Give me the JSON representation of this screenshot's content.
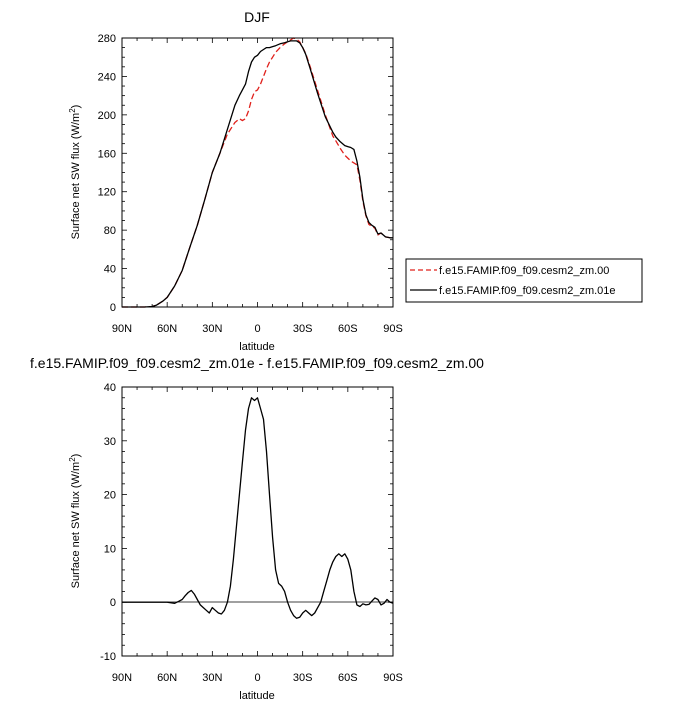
{
  "chart_data": [
    {
      "type": "line",
      "title": "DJF",
      "xlabel": "latitude",
      "ylabel": "Surface net SW flux (W/m²)",
      "ylabel_main": "Surface net SW flux (W/m",
      "ylabel_sup": "2",
      "ylabel_end": ")",
      "xlim": [
        -90,
        90
      ],
      "ylim": [
        0,
        280
      ],
      "x_ticks": [
        -90,
        -60,
        -30,
        0,
        30,
        60,
        90
      ],
      "x_tick_labels": [
        "90N",
        "60N",
        "30N",
        "0",
        "30S",
        "60S",
        "90S"
      ],
      "y_ticks": [
        0,
        40,
        80,
        120,
        160,
        200,
        240,
        280
      ],
      "y_tick_labels": [
        "0",
        "40",
        "80",
        "120",
        "160",
        "200",
        "240",
        "280"
      ],
      "legend_position": "outside-right",
      "series": [
        {
          "name": "f.e15.FAMIP.f09_f09.cesm2_zm.00",
          "color": "#e0201b",
          "dash": "dashed",
          "x": [
            -90,
            -80,
            -75,
            -70,
            -67,
            -63,
            -60,
            -55,
            -50,
            -45,
            -40,
            -35,
            -30,
            -25,
            -20,
            -15,
            -12,
            -10,
            -8,
            -6,
            -4,
            -2,
            0,
            2,
            4,
            6,
            8,
            10,
            12,
            15,
            18,
            20,
            22,
            24,
            26,
            28,
            30,
            32,
            35,
            40,
            45,
            50,
            52,
            55,
            58,
            60,
            62,
            64,
            66,
            68,
            70,
            72,
            74,
            76,
            78,
            80,
            82,
            85,
            88,
            90
          ],
          "y": [
            0,
            0,
            0,
            0.5,
            2,
            6,
            10,
            22,
            38,
            62,
            85,
            112,
            140,
            160,
            180,
            192,
            196,
            194,
            196,
            204,
            216,
            224,
            226,
            232,
            240,
            248,
            255,
            260,
            265,
            270,
            274,
            276,
            278,
            280,
            279,
            276,
            270,
            264,
            250,
            225,
            200,
            178,
            173,
            165,
            158,
            155,
            152,
            150,
            148,
            132,
            110,
            95,
            86,
            84,
            82,
            75,
            77,
            73,
            72,
            72
          ]
        },
        {
          "name": "f.e15.FAMIP.f09_f09.cesm2_zm.01e",
          "color": "#000000",
          "dash": "solid",
          "x": [
            -90,
            -80,
            -75,
            -70,
            -67,
            -63,
            -60,
            -55,
            -50,
            -45,
            -40,
            -35,
            -30,
            -25,
            -20,
            -15,
            -12,
            -10,
            -8,
            -6,
            -4,
            -2,
            0,
            2,
            4,
            6,
            8,
            10,
            12,
            15,
            18,
            20,
            22,
            24,
            26,
            28,
            30,
            32,
            35,
            40,
            45,
            50,
            52,
            55,
            58,
            60,
            62,
            64,
            66,
            68,
            70,
            72,
            74,
            76,
            78,
            80,
            82,
            85,
            88,
            90
          ],
          "y": [
            0,
            0,
            0,
            0.5,
            2,
            6,
            10,
            22,
            38,
            62,
            85,
            112,
            140,
            160,
            185,
            210,
            220,
            226,
            232,
            245,
            255,
            260,
            262,
            266,
            268,
            270,
            270,
            271,
            272,
            274,
            275,
            276,
            277,
            277,
            277,
            275,
            270,
            263,
            248,
            222,
            198,
            182,
            177,
            172,
            168,
            167,
            166,
            164,
            152,
            135,
            112,
            96,
            88,
            85,
            83,
            76,
            77,
            73,
            72,
            72
          ]
        }
      ]
    },
    {
      "type": "line",
      "title": "f.e15.FAMIP.f09_f09.cesm2_zm.01e - f.e15.FAMIP.f09_f09.cesm2_zm.00",
      "xlabel": "latitude",
      "ylabel": "Surface net SW flux (W/m²)",
      "ylabel_main": "Surface net SW flux (W/m",
      "ylabel_sup": "2",
      "ylabel_end": ")",
      "xlim": [
        -90,
        90
      ],
      "ylim": [
        -10,
        40
      ],
      "x_ticks": [
        -90,
        -60,
        -30,
        0,
        30,
        60,
        90
      ],
      "x_tick_labels": [
        "90N",
        "60N",
        "30N",
        "0",
        "30S",
        "60S",
        "90S"
      ],
      "y_ticks": [
        -10,
        0,
        10,
        20,
        30,
        40
      ],
      "y_tick_labels": [
        "-10",
        "0",
        "10",
        "20",
        "30",
        "40"
      ],
      "series": [
        {
          "color": "#000000",
          "dash": "solid",
          "x": [
            -90,
            -80,
            -70,
            -65,
            -60,
            -55,
            -52,
            -50,
            -48,
            -46,
            -44,
            -42,
            -40,
            -38,
            -36,
            -34,
            -32,
            -30,
            -28,
            -26,
            -24,
            -22,
            -20,
            -18,
            -16,
            -14,
            -12,
            -10,
            -8,
            -6,
            -4,
            -2,
            0,
            2,
            4,
            6,
            8,
            10,
            12,
            14,
            16,
            18,
            20,
            22,
            24,
            26,
            28,
            30,
            32,
            34,
            36,
            38,
            40,
            42,
            44,
            46,
            48,
            50,
            52,
            54,
            56,
            58,
            60,
            62,
            64,
            66,
            68,
            70,
            72,
            74,
            76,
            78,
            80,
            82,
            84,
            86,
            88,
            90
          ],
          "y": [
            0,
            0,
            0,
            0,
            0,
            -0.2,
            0.2,
            0.5,
            1.2,
            1.8,
            2.2,
            1.5,
            0.5,
            -0.5,
            -1,
            -1.5,
            -2,
            -1,
            -1.5,
            -2,
            -2.2,
            -1.5,
            0,
            3,
            8,
            14,
            20,
            26,
            32,
            36,
            38,
            37.5,
            38,
            36,
            34,
            28,
            20,
            12,
            6,
            3.5,
            3,
            2,
            0,
            -1.5,
            -2.5,
            -3,
            -2.8,
            -2,
            -1.5,
            -2,
            -2.5,
            -2,
            -1,
            0,
            2,
            4,
            6,
            7.5,
            8.5,
            9,
            8.5,
            9,
            8,
            6,
            2,
            -0.5,
            -0.8,
            -0.3,
            -0.5,
            -0.4,
            0.2,
            0.8,
            0.5,
            -0.5,
            -0.2,
            0.5,
            0,
            -0.2
          ]
        }
      ]
    }
  ]
}
